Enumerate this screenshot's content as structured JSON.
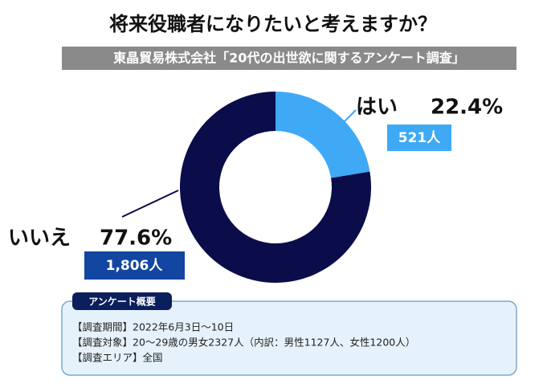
{
  "chart_data": {
    "type": "pie",
    "donut": true,
    "title": "将来役職者になりたいと考えますか？",
    "subtitle": "東晶貿易株式会社「20代の出世欲に関するアンケート調査」",
    "categories": [
      "はい",
      "いいえ"
    ],
    "values": [
      22.4,
      77.6
    ],
    "value_labels": [
      "22.4%",
      "77.6%"
    ],
    "count_labels": [
      "521人",
      "1,806人"
    ],
    "colors": [
      "#3fa9f5",
      "#0b0c4a"
    ],
    "count_box_colors": [
      "#3fa9f5",
      "#1246a0"
    ]
  },
  "summary": {
    "heading": "アンケート概要",
    "lines": [
      "【調査期間】2022年6月3日～10日",
      "【調査対象】20～29歳の男女2327人（内訳：男性1127人、女性1200人）",
      "【調査エリア】全国"
    ]
  }
}
